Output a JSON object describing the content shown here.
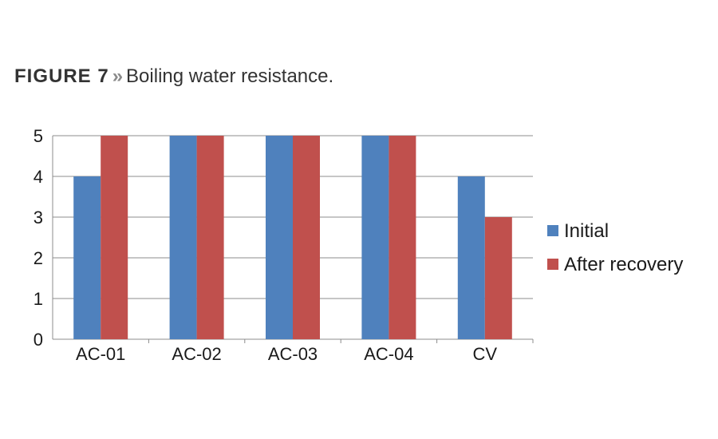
{
  "caption": {
    "figure_label": "FIGURE 7",
    "separator": "»",
    "text": "Boiling water resistance."
  },
  "chart_data": {
    "type": "bar",
    "title": "",
    "xlabel": "",
    "ylabel": "",
    "categories": [
      "AC-01",
      "AC-02",
      "AC-03",
      "AC-04",
      "CV"
    ],
    "series": [
      {
        "name": "Initial",
        "values": [
          4,
          5,
          5,
          5,
          4
        ],
        "color": "#4f81bd"
      },
      {
        "name": "After recovery",
        "values": [
          5,
          5,
          5,
          5,
          3
        ],
        "color": "#c0504d"
      }
    ],
    "ylim": [
      0,
      5
    ],
    "yticks": [
      0,
      1,
      2,
      3,
      4,
      5
    ],
    "grid": true,
    "legend_position": "right"
  }
}
